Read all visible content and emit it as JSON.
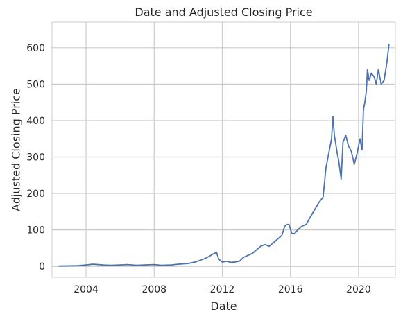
{
  "chart_data": {
    "type": "line",
    "title": "Date and Adjusted Closing Price",
    "xlabel": "Date",
    "ylabel": "Adjusted Closing Price",
    "xlim": [
      "2002-01-01",
      "2022-03-01"
    ],
    "ylim": [
      -30,
      670
    ],
    "x_ticks": [
      "2004",
      "2008",
      "2012",
      "2016",
      "2020"
    ],
    "y_ticks": [
      "0",
      "100",
      "200",
      "300",
      "400",
      "500",
      "600"
    ],
    "grid": true,
    "legend": "none",
    "colors": {
      "line": "#4c72b0",
      "grid": "#cccccc",
      "axes_edge": "#cccccc",
      "text": "#262626"
    },
    "series": [
      {
        "x": [
          "2002-05-23",
          "2003-01-01",
          "2003-07-01",
          "2004-01-01",
          "2004-06-01",
          "2005-01-01",
          "2005-06-01",
          "2006-01-01",
          "2006-06-01",
          "2007-01-01",
          "2007-06-01",
          "2008-01-01",
          "2008-06-01",
          "2009-01-01",
          "2009-06-01",
          "2010-01-01",
          "2010-06-01",
          "2011-01-01",
          "2011-04-01",
          "2011-07-01",
          "2011-09-01",
          "2011-10-15",
          "2012-01-01",
          "2012-04-01",
          "2012-07-01",
          "2012-10-01",
          "2013-01-01",
          "2013-04-01",
          "2013-07-01",
          "2013-10-01",
          "2014-01-01",
          "2014-04-01",
          "2014-07-01",
          "2014-10-01",
          "2015-01-01",
          "2015-04-01",
          "2015-07-01",
          "2015-09-01",
          "2015-10-15",
          "2015-12-01",
          "2016-02-01",
          "2016-04-01",
          "2016-06-01",
          "2016-09-01",
          "2016-12-01",
          "2017-03-01",
          "2017-06-01",
          "2017-09-01",
          "2017-12-01",
          "2018-02-01",
          "2018-04-01",
          "2018-06-01",
          "2018-07-01",
          "2018-08-01",
          "2018-10-01",
          "2018-11-01",
          "2018-12-24",
          "2019-02-01",
          "2019-04-01",
          "2019-06-01",
          "2019-08-01",
          "2019-10-01",
          "2019-12-01",
          "2020-02-01",
          "2020-03-16",
          "2020-04-15",
          "2020-05-15",
          "2020-06-15",
          "2020-07-10",
          "2020-08-15",
          "2020-10-01",
          "2020-12-01",
          "2021-01-15",
          "2021-03-01",
          "2021-05-01",
          "2021-07-01",
          "2021-09-01",
          "2021-10-15"
        ],
        "y": [
          1,
          1.5,
          2,
          4,
          6,
          4,
          3,
          4,
          5,
          3,
          4,
          5,
          3,
          4,
          6,
          8,
          12,
          22,
          28,
          35,
          38,
          20,
          12,
          14,
          11,
          12,
          14,
          25,
          30,
          35,
          45,
          55,
          60,
          55,
          65,
          75,
          85,
          110,
          115,
          115,
          90,
          90,
          100,
          110,
          115,
          135,
          155,
          175,
          190,
          270,
          310,
          350,
          410,
          360,
          310,
          290,
          240,
          340,
          360,
          330,
          315,
          280,
          310,
          350,
          320,
          430,
          450,
          480,
          540,
          510,
          530,
          520,
          500,
          540,
          500,
          510,
          560,
          610
        ]
      }
    ]
  }
}
